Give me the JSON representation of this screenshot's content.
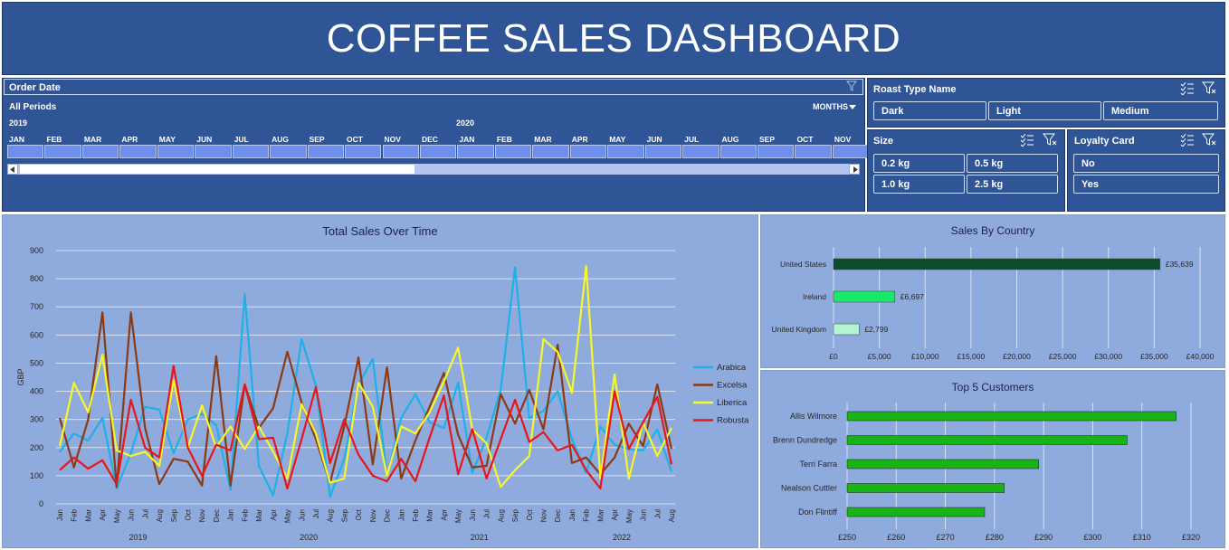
{
  "header": {
    "title": "COFFEE SALES DASHBOARD"
  },
  "timeline": {
    "title": "Order Date",
    "period_label": "All Periods",
    "level_label": "MONTHS",
    "years": [
      "2019",
      "2020"
    ],
    "months": [
      "JAN",
      "FEB",
      "MAR",
      "APR",
      "MAY",
      "JUN",
      "JUL",
      "AUG",
      "SEP",
      "OCT",
      "NOV",
      "DEC",
      "JAN",
      "FEB",
      "MAR",
      "APR",
      "MAY",
      "JUN",
      "JUL",
      "AUG",
      "SEP",
      "OCT",
      "NOV"
    ]
  },
  "roast_slicer": {
    "title": "Roast Type Name",
    "items": [
      "Dark",
      "Light",
      "Medium"
    ]
  },
  "size_slicer": {
    "title": "Size",
    "items": [
      "0.2 kg",
      "0.5 kg",
      "1.0 kg",
      "2.5 kg"
    ]
  },
  "loyalty_slicer": {
    "title": "Loyalty Card",
    "items": [
      "No",
      "Yes"
    ]
  },
  "colors": {
    "arabica": "#1fb0e8",
    "excelsa": "#8b3a14",
    "liberica": "#f7f72a",
    "robusta": "#e8161b",
    "us_bar": "#0b4d2a",
    "ireland_bar": "#19e86a",
    "uk_bar": "#b3f5d2",
    "customer_bar": "#17b317"
  },
  "chart_data": [
    {
      "type": "line",
      "title": "Total Sales Over Time",
      "xlabel": "",
      "ylabel": "GBP",
      "ylim": [
        0,
        900
      ],
      "yticks": [
        0,
        100,
        200,
        300,
        400,
        500,
        600,
        700,
        800,
        900
      ],
      "grid": true,
      "legend": "right",
      "x": [
        "Jan",
        "Feb",
        "Mar",
        "Apr",
        "May",
        "Jun",
        "Jul",
        "Aug",
        "Sep",
        "Oct",
        "Nov",
        "Dec",
        "Jan",
        "Feb",
        "Mar",
        "Apr",
        "May",
        "Jun",
        "Jul",
        "Aug",
        "Sep",
        "Oct",
        "Nov",
        "Dec",
        "Jan",
        "Feb",
        "Mar",
        "Apr",
        "May",
        "Jun",
        "Jul",
        "Aug",
        "Sep",
        "Oct",
        "Nov",
        "Dec",
        "Jan",
        "Feb",
        "Mar",
        "Apr",
        "May",
        "Jun",
        "Jul",
        "Aug"
      ],
      "year_groups": [
        {
          "label": "2019",
          "start": 0,
          "end": 11
        },
        {
          "label": "2020",
          "start": 12,
          "end": 23
        },
        {
          "label": "2021",
          "start": 24,
          "end": 35
        },
        {
          "label": "2022",
          "start": 36,
          "end": 43
        }
      ],
      "series": [
        {
          "name": "Arabica",
          "color": "#1fb0e8",
          "values": [
            185,
            250,
            225,
            305,
            55,
            180,
            345,
            335,
            180,
            300,
            320,
            280,
            50,
            745,
            135,
            30,
            250,
            585,
            420,
            25,
            160,
            425,
            515,
            100,
            305,
            390,
            290,
            270,
            430,
            110,
            235,
            405,
            840,
            305,
            330,
            400,
            230,
            110,
            275,
            210,
            195,
            190,
            265,
            115
          ]
        },
        {
          "name": "Excelsa",
          "color": "#8b3a14",
          "values": [
            305,
            130,
            300,
            680,
            60,
            680,
            270,
            70,
            160,
            150,
            65,
            525,
            65,
            425,
            270,
            340,
            540,
            360,
            230,
            75,
            275,
            520,
            140,
            485,
            90,
            225,
            345,
            465,
            245,
            130,
            135,
            390,
            285,
            405,
            265,
            565,
            145,
            165,
            105,
            165,
            285,
            205,
            425,
            195
          ]
        },
        {
          "name": "Liberica",
          "color": "#f7f72a",
          "values": [
            205,
            430,
            325,
            530,
            190,
            170,
            185,
            135,
            440,
            200,
            350,
            200,
            275,
            195,
            275,
            185,
            90,
            355,
            250,
            75,
            90,
            430,
            345,
            100,
            275,
            250,
            325,
            435,
            555,
            265,
            215,
            60,
            120,
            170,
            585,
            540,
            395,
            845,
            90,
            460,
            90,
            290,
            170,
            270
          ]
        },
        {
          "name": "Robusta",
          "color": "#e8161b",
          "values": [
            120,
            165,
            125,
            155,
            70,
            370,
            200,
            165,
            490,
            200,
            100,
            210,
            190,
            425,
            230,
            235,
            55,
            230,
            415,
            145,
            300,
            175,
            100,
            80,
            160,
            80,
            235,
            385,
            105,
            265,
            90,
            230,
            370,
            220,
            255,
            190,
            210,
            120,
            55,
            400,
            195,
            290,
            380,
            140
          ]
        }
      ]
    },
    {
      "type": "bar",
      "title": "Sales By Country",
      "orientation": "horizontal",
      "categories": [
        "United States",
        "Ireland",
        "United Kingdom"
      ],
      "values": [
        35639,
        6697,
        2799
      ],
      "data_labels": [
        "£35,639",
        "£6,697",
        "£2,799"
      ],
      "xlim": [
        0,
        40000
      ],
      "xticks": [
        "£0",
        "£5,000",
        "£10,000",
        "£15,000",
        "£20,000",
        "£25,000",
        "£30,000",
        "£35,000",
        "£40,000"
      ],
      "grid": true
    },
    {
      "type": "bar",
      "title": "Top 5 Customers",
      "orientation": "horizontal",
      "categories": [
        "Allis Wilmore",
        "Brenn Dundredge",
        "Terri Farra",
        "Nealson Cuttler",
        "Don Flintiff"
      ],
      "values": [
        317,
        307,
        289,
        282,
        278
      ],
      "xlim": [
        250,
        320
      ],
      "xticks": [
        "£250",
        "£260",
        "£270",
        "£280",
        "£290",
        "£300",
        "£310",
        "£320"
      ],
      "grid": true
    }
  ]
}
